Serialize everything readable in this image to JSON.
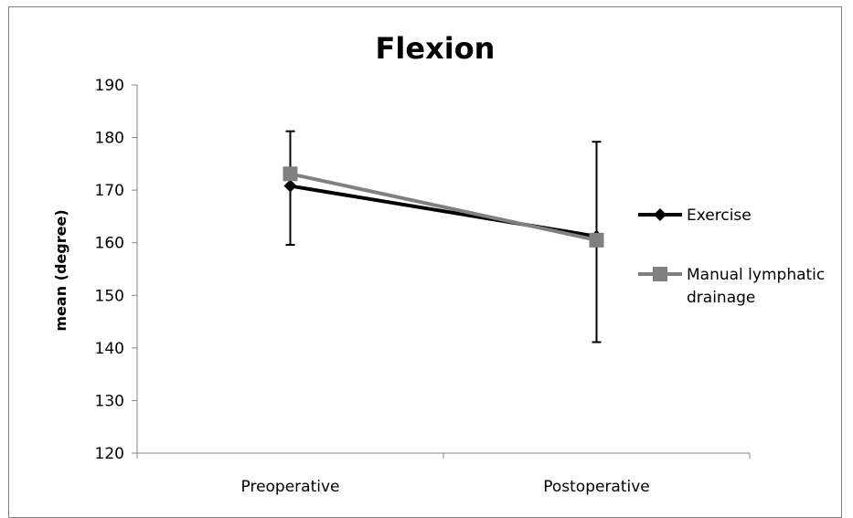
{
  "chart_data": {
    "type": "line",
    "title": "Flexion",
    "xlabel": "",
    "ylabel": "mean (degree)",
    "categories": [
      "Preoperative",
      "Postoperative"
    ],
    "ylim": [
      120,
      190
    ],
    "yticks": [
      120,
      130,
      140,
      150,
      160,
      170,
      180,
      190
    ],
    "grid": false,
    "legend_position": "right",
    "series": [
      {
        "name": "Exercise",
        "values": [
          170.8,
          161.2
        ],
        "color": "#000000",
        "marker": "diamond"
      },
      {
        "name": "Manual lymphatic drainage",
        "legend_lines": [
          "Manual lymphatic",
          "drainage"
        ],
        "values": [
          173.1,
          160.5
        ],
        "color": "#808080",
        "marker": "square"
      }
    ],
    "error_bars": [
      {
        "category": "Preoperative",
        "low": 159.6,
        "high": 181.2
      },
      {
        "category": "Postoperative",
        "low": 141.1,
        "high": 179.2
      }
    ]
  }
}
